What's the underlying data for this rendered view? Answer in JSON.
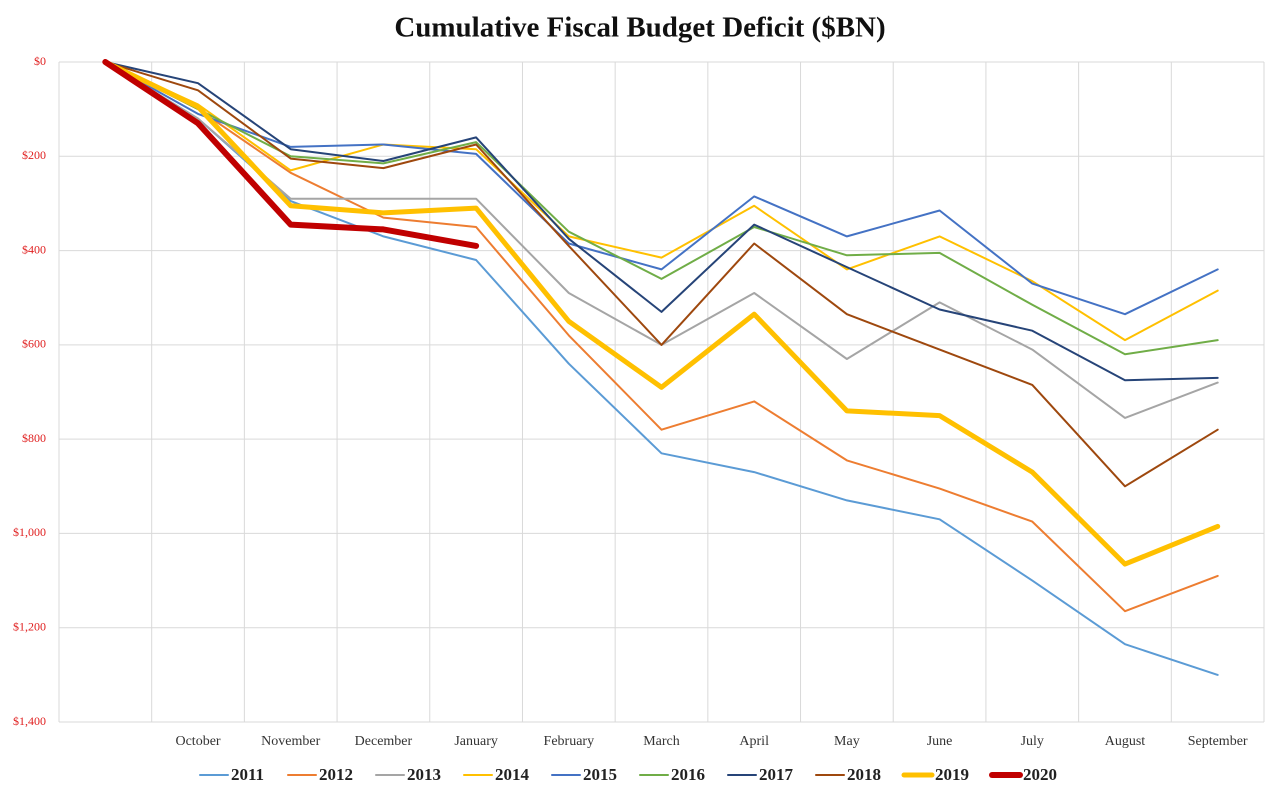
{
  "chart_data": {
    "type": "line",
    "title": "Cumulative Fiscal Budget Deficit ($BN)",
    "categories": [
      null,
      "October",
      "November",
      "December",
      "January",
      "February",
      "March",
      "April",
      "May",
      "June",
      "July",
      "August",
      "September"
    ],
    "ylim": [
      0,
      1400
    ],
    "y_inverted": true,
    "yticks": [
      {
        "value": 0,
        "label": "$0"
      },
      {
        "value": 200,
        "label": "$200"
      },
      {
        "value": 400,
        "label": "$400"
      },
      {
        "value": 600,
        "label": "$600"
      },
      {
        "value": 800,
        "label": "$800"
      },
      {
        "value": 1000,
        "label": "$1,000"
      },
      {
        "value": 1200,
        "label": "$1,200"
      },
      {
        "value": 1400,
        "label": "$1,400"
      }
    ],
    "grid": true,
    "legend": "bottom",
    "series": [
      {
        "name": "2011",
        "color": "#5b9bd5",
        "width": 2,
        "values": [
          0,
          120,
          295,
          370,
          420,
          640,
          830,
          870,
          930,
          970,
          1100,
          1235,
          1300
        ]
      },
      {
        "name": "2012",
        "color": "#ed7d31",
        "width": 2,
        "values": [
          0,
          100,
          235,
          330,
          350,
          580,
          780,
          720,
          845,
          905,
          975,
          1165,
          1090
        ]
      },
      {
        "name": "2013",
        "color": "#a5a5a5",
        "width": 2,
        "values": [
          0,
          120,
          290,
          290,
          290,
          490,
          600,
          490,
          630,
          510,
          610,
          755,
          680
        ]
      },
      {
        "name": "2014",
        "color": "#ffc000",
        "width": 2,
        "values": [
          0,
          90,
          230,
          175,
          185,
          370,
          415,
          305,
          440,
          370,
          465,
          590,
          485
        ]
      },
      {
        "name": "2015",
        "color": "#4472c4",
        "width": 2,
        "values": [
          0,
          110,
          180,
          175,
          195,
          385,
          440,
          285,
          370,
          315,
          470,
          535,
          440
        ]
      },
      {
        "name": "2016",
        "color": "#70ad47",
        "width": 2,
        "values": [
          0,
          100,
          200,
          215,
          170,
          360,
          460,
          350,
          410,
          405,
          515,
          620,
          590
        ]
      },
      {
        "name": "2017",
        "color": "#264478",
        "width": 2,
        "values": [
          0,
          45,
          185,
          210,
          160,
          375,
          530,
          345,
          435,
          525,
          570,
          675,
          670
        ]
      },
      {
        "name": "2018",
        "color": "#9e480e",
        "width": 2,
        "values": [
          0,
          60,
          205,
          225,
          175,
          390,
          600,
          385,
          535,
          610,
          685,
          900,
          780
        ]
      },
      {
        "name": "2019",
        "color": "#ffc000",
        "width": 5,
        "values": [
          0,
          95,
          305,
          320,
          310,
          550,
          690,
          535,
          740,
          750,
          870,
          1065,
          985
        ]
      },
      {
        "name": "2020",
        "color": "#c00000",
        "width": 6,
        "values": [
          0,
          130,
          345,
          355,
          390,
          null,
          null,
          null,
          null,
          null,
          null,
          null,
          null
        ]
      }
    ]
  }
}
